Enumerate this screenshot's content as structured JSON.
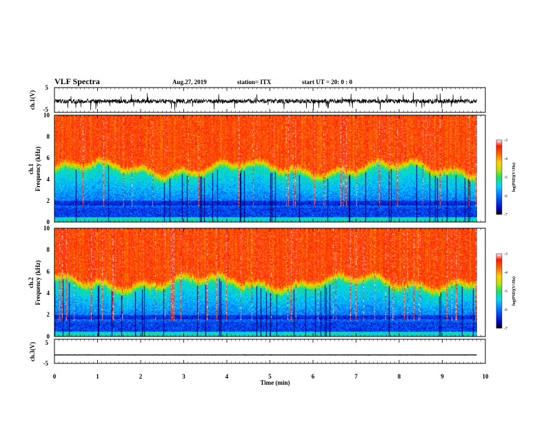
{
  "header": {
    "title": "VLF Spectra",
    "date": "Aug.27, 2019",
    "station": "station= ITX",
    "start_ut": "start UT =   20: 0  : 0"
  },
  "chart_data": [
    {
      "type": "line",
      "panel": "ch1-waveform",
      "ylabel": "ch.1(V)",
      "ylim": [
        -5,
        5
      ],
      "yticks": [
        "5",
        "-5"
      ],
      "xlim": [
        0,
        10
      ],
      "baseline": -0.5,
      "noise_amplitude": 0.9,
      "spike_amplitude": 3.8,
      "data_end_min": 9.8,
      "color": "#000000"
    },
    {
      "type": "heatmap",
      "panel": "ch1-spectrogram",
      "ylabel_line1": "ch.1",
      "ylabel_line2": "Frequency  (kHz)",
      "ylim": [
        0,
        10
      ],
      "yticks": [
        "0",
        "2",
        "4",
        "6",
        "8",
        "10"
      ],
      "xlim": [
        0,
        10
      ],
      "data_end_min": 9.8,
      "colorbar": {
        "range": [
          -7,
          -3
        ],
        "ticks": [
          "-3",
          "-4",
          "-5",
          "-6",
          "-7"
        ],
        "label": "log(PSD)(V²/Hz)"
      }
    },
    {
      "type": "heatmap",
      "panel": "ch2-spectrogram",
      "ylabel_line1": "ch.2",
      "ylabel_line2": "Frequency  (kHz)",
      "ylim": [
        0,
        10
      ],
      "yticks": [
        "0",
        "2",
        "4",
        "6",
        "8",
        "10"
      ],
      "xlim": [
        0,
        10
      ],
      "data_end_min": 9.8,
      "colorbar": {
        "range": [
          -7,
          -3
        ],
        "ticks": [
          "-3",
          "-4",
          "-5",
          "-6",
          "-7"
        ],
        "label": "log(PSD)(V²/Hz)"
      }
    },
    {
      "type": "line",
      "panel": "ch3-waveform",
      "ylabel": "ch.3(V)",
      "ylim": [
        -5,
        5
      ],
      "yticks": [
        "5",
        "-5"
      ],
      "xlim": [
        0,
        10
      ],
      "baseline": -1.5,
      "noise_amplitude": 0.05,
      "spike_amplitude": 0,
      "data_end_min": 9.8,
      "color": "#000000",
      "xlabel": "Time  (min)",
      "xticks": [
        "0",
        "1",
        "2",
        "3",
        "4",
        "5",
        "6",
        "7",
        "8",
        "9",
        "10"
      ]
    }
  ],
  "colors": {
    "colormap": [
      "#000000",
      "#0000c8",
      "#0060ff",
      "#00c8ff",
      "#00e8a0",
      "#20e020",
      "#c8e000",
      "#ffd000",
      "#ff8000",
      "#ff2000",
      "#ffffff"
    ]
  }
}
